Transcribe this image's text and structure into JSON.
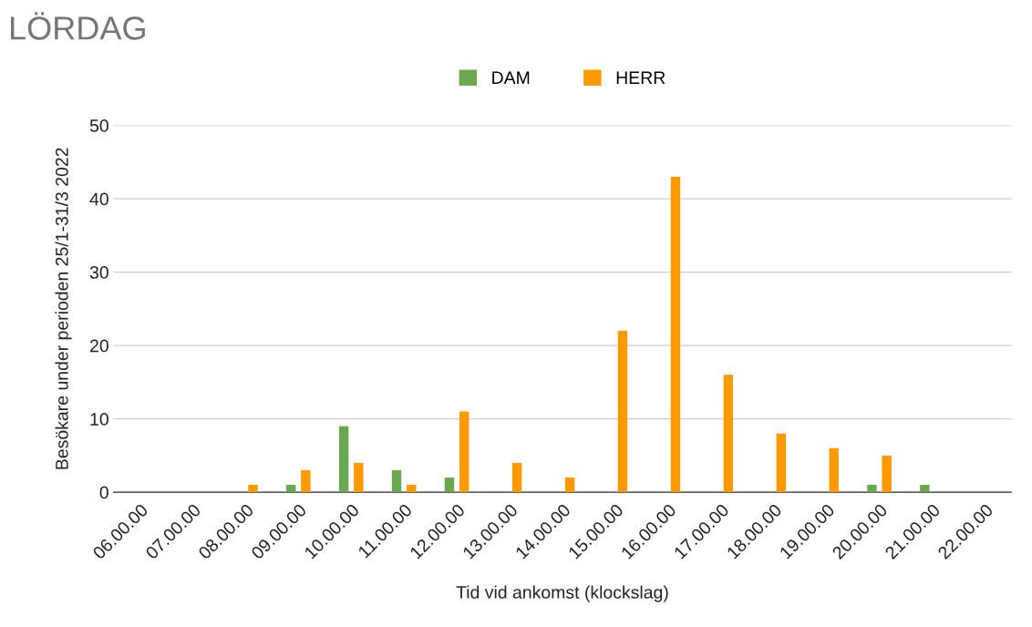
{
  "chart_data": {
    "type": "bar",
    "title": "LÖRDAG",
    "xlabel": "Tid vid ankomst (klockslag)",
    "ylabel": "Besökare under perioden 25/1-31/3 2022",
    "categories": [
      "06.00.00",
      "07.00.00",
      "08.00.00",
      "09.00.00",
      "10.00.00",
      "11.00.00",
      "12.00.00",
      "13.00.00",
      "14.00.00",
      "15.00.00",
      "16.00.00",
      "17.00.00",
      "18.00.00",
      "19.00.00",
      "20.00.00",
      "21.00.00",
      "22.00.00"
    ],
    "series": [
      {
        "name": "DAM",
        "color": "#6aa84f",
        "values": [
          0,
          0,
          0,
          1,
          9,
          3,
          2,
          0,
          0,
          0,
          0,
          0,
          0,
          0,
          1,
          1,
          0
        ]
      },
      {
        "name": "HERR",
        "color": "#ff9900",
        "values": [
          0,
          0,
          1,
          3,
          4,
          1,
          11,
          4,
          2,
          22,
          43,
          16,
          8,
          6,
          5,
          0,
          0
        ]
      }
    ],
    "ylim": [
      0,
      50
    ],
    "yticks": [
      0,
      10,
      20,
      30,
      40,
      50
    ],
    "grid": "y",
    "legend": "top"
  }
}
